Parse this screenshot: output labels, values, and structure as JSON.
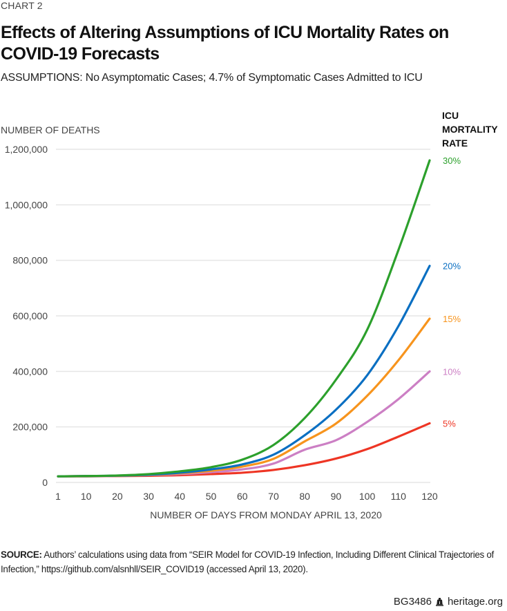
{
  "header": {
    "kicker": "CHART 2",
    "title": "Effects of Altering Assumptions of ICU Mortality Rates on COVID-19 Forecasts",
    "subtitle": "ASSUMPTIONS: No Asymptomatic Cases; 4.7% of Symptomatic Cases Admitted to ICU"
  },
  "legend": {
    "title_lines": [
      "ICU",
      "MORTALITY",
      "RATE"
    ]
  },
  "chart_data": {
    "type": "line",
    "title": "Effects of Altering Assumptions of ICU Mortality Rates on COVID-19 Forecasts",
    "subtitle": "ASSUMPTIONS: No Asymptomatic Cases; 4.7% of Symptomatic Cases Admitted to ICU",
    "xlabel": "NUMBER OF DAYS FROM MONDAY APRIL 13, 2020",
    "ylabel": "NUMBER OF DEATHS",
    "xlim": [
      1,
      120
    ],
    "ylim": [
      0,
      1200000
    ],
    "grid": "horizontal",
    "legend_title": "ICU MORTALITY RATE",
    "legend_placement": "right (labels at line ends)",
    "x_ticks": [
      1,
      10,
      20,
      30,
      40,
      50,
      60,
      70,
      80,
      90,
      100,
      110,
      120
    ],
    "x_tick_labels": [
      "1",
      "10",
      "20",
      "30",
      "40",
      "50",
      "60",
      "70",
      "80",
      "90",
      "100",
      "110",
      "120"
    ],
    "y_ticks": [
      0,
      200000,
      400000,
      600000,
      800000,
      1000000,
      1200000
    ],
    "y_tick_labels": [
      "0",
      "200,000",
      "400,000",
      "600,000",
      "800,000",
      "1,000,000",
      "1,200,000"
    ],
    "x": [
      1,
      10,
      20,
      30,
      40,
      50,
      60,
      70,
      80,
      90,
      100,
      110,
      120
    ],
    "series": [
      {
        "name": "30%",
        "color": "#2ca02c",
        "values": [
          22000,
          23000,
          25000,
          30000,
          40000,
          55000,
          82000,
          135000,
          232000,
          370000,
          550000,
          837000,
          1160000
        ]
      },
      {
        "name": "20%",
        "color": "#0a6fc2",
        "values": [
          22000,
          23000,
          24500,
          28000,
          35000,
          47000,
          65000,
          100000,
          170000,
          262000,
          386000,
          563000,
          780000
        ]
      },
      {
        "name": "15%",
        "color": "#f7941d",
        "values": [
          22000,
          23000,
          24000,
          27000,
          33000,
          42000,
          57000,
          85000,
          148000,
          212000,
          312000,
          440000,
          590000
        ]
      },
      {
        "name": "10%",
        "color": "#cc7fc4",
        "values": [
          22000,
          22500,
          23500,
          26000,
          30000,
          37000,
          47000,
          68000,
          118000,
          152000,
          218000,
          300000,
          400000
        ]
      },
      {
        "name": "5%",
        "color": "#ee3524",
        "values": [
          22000,
          22000,
          23000,
          24000,
          26000,
          30000,
          35000,
          45000,
          62000,
          86000,
          120000,
          165000,
          213000
        ]
      }
    ]
  },
  "footer": {
    "source_label": "SOURCE:",
    "source_text": "Authors’ calculations using data from “SEIR Model for COVID-19 Infection, Including Different Clinical Trajectories of Infection,” https://github.com/alsnhll/SEIR_COVID19 (accessed April 13, 2020).",
    "code": "BG3486",
    "site": "heritage.org",
    "logo_icon": "liberty-bell-icon"
  }
}
